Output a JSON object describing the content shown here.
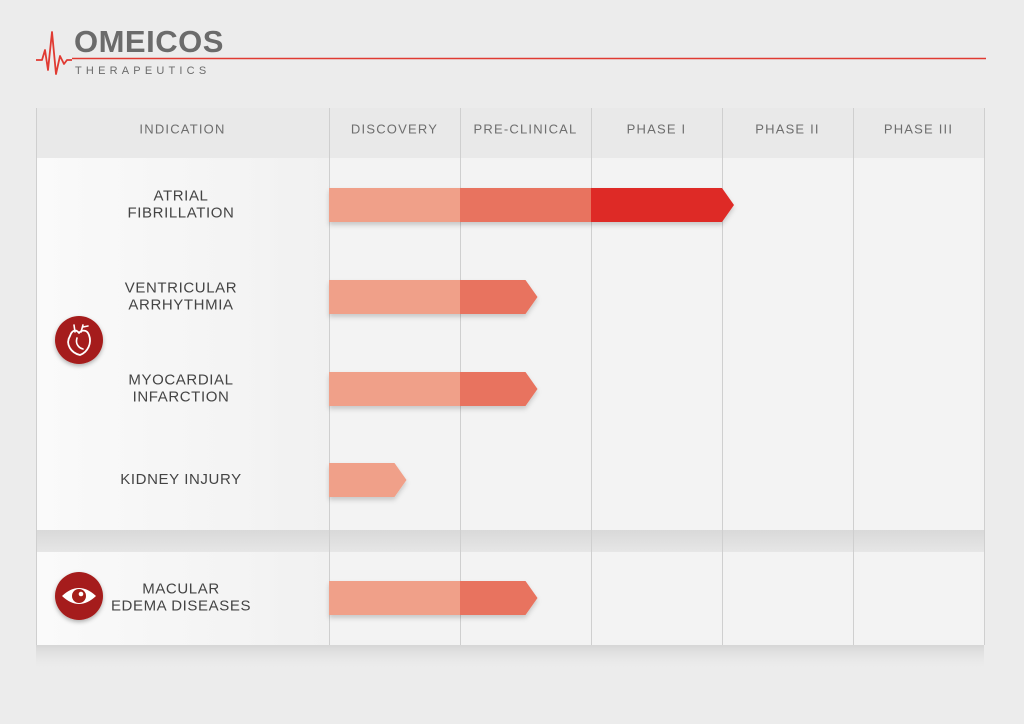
{
  "brand": {
    "name": "OMEICOS",
    "tagline": "THERAPEUTICS",
    "accent_color": "#e03a32",
    "text_color": "#6b6b6b"
  },
  "chart_data": {
    "type": "bar",
    "orientation": "horizontal",
    "category_header": "INDICATION",
    "stages": [
      "DISCOVERY",
      "PRE-CLINICAL",
      "PHASE I",
      "PHASE II",
      "PHASE III"
    ],
    "stage_colors": [
      "#f0a089",
      "#e8735e",
      "#de2c28"
    ],
    "groups": [
      {
        "icon": "heart-icon",
        "rows": [
          {
            "label": [
              "ATRIAL",
              "FIBRILLATION"
            ],
            "progress": 3.0
          },
          {
            "label": [
              "VENTRICULAR",
              "ARRHYTHMIA"
            ],
            "progress": 1.5
          },
          {
            "label": [
              "MYOCARDIAL",
              "INFARCTION"
            ],
            "progress": 1.5
          },
          {
            "label": [
              "KIDNEY INJURY"
            ],
            "progress": 0.5
          }
        ]
      },
      {
        "icon": "eye-icon",
        "rows": [
          {
            "label": [
              "MACULAR",
              "EDEMA DISEASES"
            ],
            "progress": 1.5
          }
        ]
      }
    ]
  }
}
